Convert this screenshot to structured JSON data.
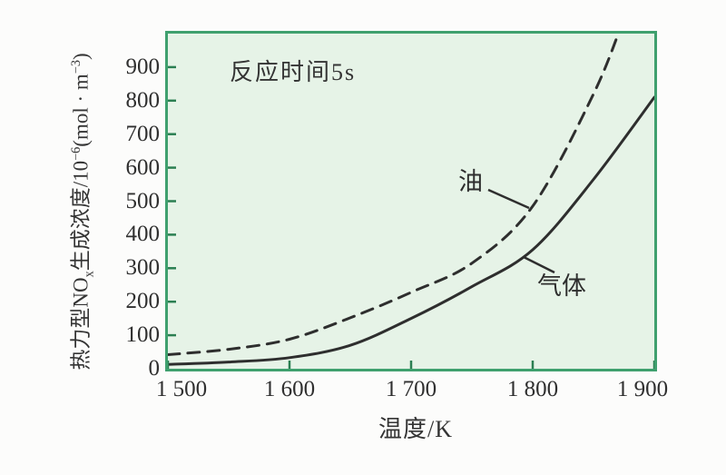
{
  "chart": {
    "plot_bg": "#e6f3e7",
    "border_color": "#3fa06e",
    "tick_color": "#2b7f52",
    "curve_color": "#2e2e2e",
    "text_color": "#2f2f2f",
    "annotation": "反应时间5s",
    "xlabel": "温度/K",
    "ylabel_parts": {
      "p1": "热力型NO",
      "sub1": "x",
      "p2": "生成浓度/10",
      "sup1": "−6",
      "p3": "(mol · m",
      "sup2": "−3",
      "p4": ")"
    },
    "x_ticks": [
      {
        "value": 1500,
        "label": "1 500"
      },
      {
        "value": 1600,
        "label": "1 600"
      },
      {
        "value": 1700,
        "label": "1 700"
      },
      {
        "value": 1800,
        "label": "1 800"
      },
      {
        "value": 1900,
        "label": "1 900"
      }
    ],
    "y_ticks": [
      {
        "value": 0,
        "label": "0"
      },
      {
        "value": 100,
        "label": "100"
      },
      {
        "value": 200,
        "label": "200"
      },
      {
        "value": 300,
        "label": "300"
      },
      {
        "value": 400,
        "label": "400"
      },
      {
        "value": 500,
        "label": "500"
      },
      {
        "value": 600,
        "label": "600"
      },
      {
        "value": 700,
        "label": "700"
      },
      {
        "value": 800,
        "label": "800"
      },
      {
        "value": 900,
        "label": "900"
      }
    ]
  },
  "chart_data": {
    "type": "line",
    "title": "",
    "annotation": "反应时间5s",
    "xlabel": "温度/K",
    "ylabel": "热力型NOₓ生成浓度/10⁻⁶(mol·m⁻³)",
    "xlim": [
      1500,
      1900
    ],
    "ylim": [
      0,
      1000
    ],
    "grid": false,
    "legend_position": "inline-labels",
    "series": [
      {
        "id": "oil",
        "name": "油",
        "line_style": "dashed",
        "x": [
          1500,
          1550,
          1600,
          1650,
          1700,
          1750,
          1800,
          1850,
          1875
        ],
        "y": [
          42,
          58,
          88,
          152,
          228,
          315,
          485,
          820,
          1045
        ]
      },
      {
        "id": "gas",
        "name": "气体",
        "line_style": "solid",
        "x": [
          1500,
          1550,
          1600,
          1650,
          1700,
          1750,
          1800,
          1850,
          1900
        ],
        "y": [
          13,
          20,
          33,
          70,
          150,
          245,
          355,
          565,
          810
        ]
      }
    ]
  }
}
